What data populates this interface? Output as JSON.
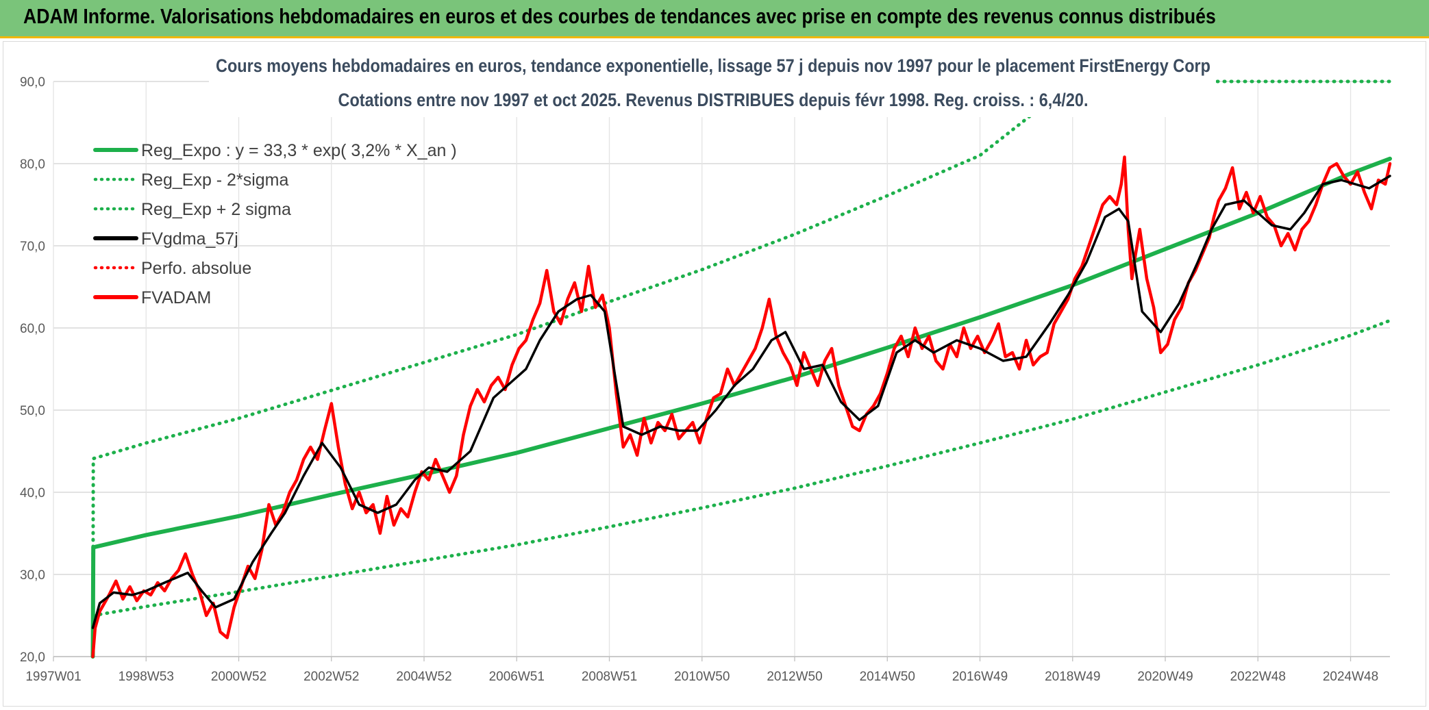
{
  "header": {
    "title": "ADAM Informe. Valorisations hebdomadaires en euros et des courbes de tendances avec prise en compte des revenus connus distribués"
  },
  "colors": {
    "header_bg": "#7ac47a",
    "header_border": "#f2b705",
    "regression": "#1db04b",
    "smoothed": "#000000",
    "price": "#ff0000",
    "grid": "#d9d9d9",
    "title_text": "#3b4b5e"
  },
  "chart_data": {
    "type": "line",
    "title_line1": "Cours moyens hebdomadaires en euros, tendance exponentielle, lissage 57 j depuis nov 1997 pour le placement FirstEnergy Corp",
    "title_line2": "Cotations entre nov 1997 et oct 2025. Revenus DISTRIBUES depuis févr 1998. Reg. croiss. : 6,4/20.",
    "xlabel": "",
    "ylabel": "",
    "xlim": [
      1997.0,
      2025.85
    ],
    "ylim": [
      20,
      90
    ],
    "y_ticks": [
      20,
      30,
      40,
      50,
      60,
      70,
      80,
      90
    ],
    "y_tick_labels": [
      "20,0",
      "30,0",
      "40,0",
      "50,0",
      "60,0",
      "70,0",
      "80,0",
      "90,0"
    ],
    "x_ticks": [
      {
        "label": "1997W01",
        "x": 1997.0
      },
      {
        "label": "1998W53",
        "x": 1999.0
      },
      {
        "label": "2000W52",
        "x": 2001.0
      },
      {
        "label": "2002W52",
        "x": 2003.0
      },
      {
        "label": "2004W52",
        "x": 2005.0
      },
      {
        "label": "2006W51",
        "x": 2007.0
      },
      {
        "label": "2008W51",
        "x": 2009.0
      },
      {
        "label": "2010W50",
        "x": 2011.0
      },
      {
        "label": "2012W50",
        "x": 2013.0
      },
      {
        "label": "2014W50",
        "x": 2015.0
      },
      {
        "label": "2016W49",
        "x": 2017.0
      },
      {
        "label": "2018W49",
        "x": 2019.0
      },
      {
        "label": "2020W49",
        "x": 2021.0
      },
      {
        "label": "2022W48",
        "x": 2023.0
      },
      {
        "label": "2024W48",
        "x": 2025.0
      }
    ],
    "grid": true,
    "legend_position": "top-left",
    "series": [
      {
        "name": "Reg_Expo : y = 33,3 * exp( 3,2% *  X_an )",
        "style": "solid-thick",
        "color": "#1db04b",
        "x": [
          1997.85,
          1997.86,
          1999,
          2001,
          2003,
          2005,
          2007,
          2009,
          2011,
          2013,
          2015,
          2017,
          2019,
          2021,
          2023,
          2025,
          2025.85
        ],
        "y": [
          20.0,
          33.3,
          34.8,
          37.1,
          39.7,
          42.2,
          44.8,
          47.8,
          50.8,
          54.0,
          57.6,
          61.3,
          65.2,
          69.6,
          74.0,
          78.8,
          80.6
        ]
      },
      {
        "name": "Reg_Exp - 2*sigma",
        "style": "dotted",
        "color": "#1db04b",
        "x": [
          1997.85,
          1997.86,
          1999,
          2001,
          2003,
          2005,
          2007,
          2009,
          2011,
          2013,
          2015,
          2017,
          2019,
          2021,
          2023,
          2025,
          2025.85
        ],
        "y": [
          20.0,
          25.0,
          26.1,
          27.9,
          29.8,
          31.7,
          33.6,
          35.8,
          38.1,
          40.5,
          43.2,
          46.0,
          48.9,
          52.2,
          55.5,
          59.1,
          60.9
        ]
      },
      {
        "name": "Reg_Exp + 2 sigma",
        "style": "dotted",
        "color": "#1db04b",
        "x": [
          1997.85,
          1997.86,
          1999,
          2001,
          2003,
          2005,
          2007,
          2009,
          2011,
          2013,
          2015,
          2017,
          2018.15,
          2018.2,
          2025.85
        ],
        "y": [
          20.0,
          44.1,
          46.0,
          49.0,
          52.4,
          55.8,
          59.2,
          63.2,
          67.1,
          71.4,
          76.1,
          81.0,
          86.1,
          90.0,
          90.0
        ]
      },
      {
        "name": "FVgdma_57j",
        "style": "solid",
        "color": "#000000",
        "x": [
          1997.85,
          1998.0,
          1998.3,
          1998.7,
          1999.0,
          1999.4,
          1999.9,
          2000.2,
          2000.5,
          2000.9,
          2001.3,
          2001.7,
          2002.0,
          2002.4,
          2002.8,
          2003.2,
          2003.6,
          2004.0,
          2004.4,
          2004.8,
          2005.1,
          2005.5,
          2006.0,
          2006.5,
          2006.9,
          2007.2,
          2007.5,
          2007.9,
          2008.3,
          2008.6,
          2008.9,
          2009.3,
          2009.7,
          2010.1,
          2010.5,
          2010.9,
          2011.3,
          2011.7,
          2012.1,
          2012.5,
          2012.8,
          2013.2,
          2013.6,
          2014.0,
          2014.4,
          2014.8,
          2015.2,
          2015.6,
          2016.0,
          2016.5,
          2017.0,
          2017.5,
          2018.0,
          2018.5,
          2018.9,
          2019.3,
          2019.7,
          2020.0,
          2020.2,
          2020.5,
          2020.9,
          2021.3,
          2021.7,
          2022.0,
          2022.3,
          2022.7,
          2023.0,
          2023.3,
          2023.7,
          2024.0,
          2024.4,
          2024.8,
          2025.1,
          2025.4,
          2025.85
        ],
        "y": [
          23.5,
          26.5,
          27.8,
          27.5,
          28.0,
          29.0,
          30.2,
          28.0,
          26.0,
          27.0,
          31.5,
          35.0,
          37.5,
          42.0,
          46.0,
          43.0,
          38.5,
          37.5,
          38.5,
          41.5,
          43.0,
          42.5,
          45.0,
          51.5,
          53.5,
          55.0,
          58.5,
          62.0,
          63.5,
          64.0,
          62.0,
          48.0,
          47.0,
          48.0,
          47.5,
          47.5,
          50.0,
          53.0,
          55.0,
          58.5,
          59.5,
          55.0,
          55.5,
          51.0,
          48.8,
          50.5,
          57.0,
          58.5,
          57.0,
          58.5,
          57.5,
          56.0,
          56.5,
          60.5,
          64.0,
          68.0,
          73.5,
          74.5,
          73.0,
          62.0,
          59.5,
          63.0,
          68.0,
          72.0,
          75.0,
          75.5,
          74.0,
          72.5,
          72.0,
          74.0,
          77.5,
          78.0,
          77.5,
          77.0,
          78.5
        ]
      },
      {
        "name": "Perfo. absolue",
        "style": "dotted",
        "color": "#ff0000",
        "x": [],
        "y": []
      },
      {
        "name": "FVADAM",
        "style": "solid-thick",
        "color": "#ff0000",
        "x": [
          1997.85,
          1997.9,
          1998.0,
          1998.2,
          1998.35,
          1998.5,
          1998.65,
          1998.8,
          1998.95,
          1999.1,
          1999.25,
          1999.4,
          1999.55,
          1999.7,
          1999.85,
          2000.0,
          2000.15,
          2000.3,
          2000.45,
          2000.6,
          2000.75,
          2000.9,
          2001.05,
          2001.2,
          2001.35,
          2001.5,
          2001.65,
          2001.8,
          2001.95,
          2002.1,
          2002.25,
          2002.4,
          2002.55,
          2002.7,
          2002.85,
          2003.0,
          2003.15,
          2003.3,
          2003.45,
          2003.6,
          2003.75,
          2003.9,
          2004.05,
          2004.2,
          2004.35,
          2004.5,
          2004.65,
          2004.8,
          2004.95,
          2005.1,
          2005.25,
          2005.4,
          2005.55,
          2005.7,
          2005.85,
          2006.0,
          2006.15,
          2006.3,
          2006.45,
          2006.6,
          2006.75,
          2006.9,
          2007.05,
          2007.2,
          2007.35,
          2007.5,
          2007.65,
          2007.8,
          2007.95,
          2008.1,
          2008.25,
          2008.4,
          2008.55,
          2008.7,
          2008.85,
          2009.0,
          2009.15,
          2009.3,
          2009.45,
          2009.6,
          2009.75,
          2009.9,
          2010.05,
          2010.2,
          2010.35,
          2010.5,
          2010.65,
          2010.8,
          2010.95,
          2011.1,
          2011.25,
          2011.4,
          2011.55,
          2011.7,
          2011.85,
          2012.0,
          2012.15,
          2012.3,
          2012.45,
          2012.6,
          2012.75,
          2012.9,
          2013.05,
          2013.2,
          2013.35,
          2013.5,
          2013.65,
          2013.8,
          2013.95,
          2014.1,
          2014.25,
          2014.4,
          2014.55,
          2014.7,
          2014.85,
          2015.0,
          2015.15,
          2015.3,
          2015.45,
          2015.6,
          2015.75,
          2015.9,
          2016.05,
          2016.2,
          2016.35,
          2016.5,
          2016.65,
          2016.8,
          2016.95,
          2017.1,
          2017.25,
          2017.4,
          2017.55,
          2017.7,
          2017.85,
          2018.0,
          2018.15,
          2018.3,
          2018.45,
          2018.6,
          2018.75,
          2018.9,
          2019.05,
          2019.2,
          2019.35,
          2019.5,
          2019.65,
          2019.8,
          2019.95,
          2020.05,
          2020.12,
          2020.2,
          2020.28,
          2020.36,
          2020.45,
          2020.6,
          2020.75,
          2020.9,
          2021.05,
          2021.2,
          2021.35,
          2021.5,
          2021.65,
          2021.8,
          2021.95,
          2022.05,
          2022.15,
          2022.3,
          2022.45,
          2022.6,
          2022.75,
          2022.9,
          2023.05,
          2023.2,
          2023.35,
          2023.5,
          2023.65,
          2023.8,
          2023.95,
          2024.1,
          2024.25,
          2024.4,
          2024.55,
          2024.7,
          2024.85,
          2025.0,
          2025.15,
          2025.3,
          2025.45,
          2025.6,
          2025.75,
          2025.85
        ],
        "y": [
          20.0,
          23.5,
          25.5,
          27.5,
          29.2,
          27.0,
          28.5,
          26.8,
          28.0,
          27.5,
          29.0,
          28.0,
          29.5,
          30.5,
          32.5,
          30.0,
          28.0,
          25.0,
          26.5,
          23.0,
          22.3,
          26.0,
          28.5,
          31.0,
          29.5,
          33.0,
          38.5,
          36.0,
          37.5,
          40.0,
          41.5,
          44.0,
          45.5,
          44.0,
          47.5,
          50.8,
          45.5,
          41.0,
          38.0,
          40.0,
          37.5,
          38.5,
          35.0,
          39.5,
          36.0,
          38.0,
          37.0,
          40.0,
          42.5,
          41.5,
          44.0,
          42.0,
          40.0,
          42.0,
          47.0,
          50.5,
          52.5,
          51.0,
          53.0,
          54.0,
          52.5,
          55.5,
          57.5,
          58.5,
          61.0,
          63.0,
          67.0,
          62.0,
          60.5,
          63.5,
          65.5,
          62.0,
          67.5,
          62.5,
          64.0,
          60.0,
          52.0,
          45.5,
          47.0,
          44.5,
          49.0,
          46.0,
          48.5,
          47.5,
          49.5,
          46.5,
          47.5,
          48.5,
          46.0,
          49.0,
          51.5,
          52.0,
          55.0,
          53.0,
          54.5,
          56.0,
          57.5,
          60.0,
          63.5,
          59.0,
          57.0,
          55.5,
          53.0,
          57.0,
          55.0,
          53.0,
          56.0,
          57.5,
          53.0,
          50.5,
          48.0,
          47.5,
          49.5,
          50.5,
          52.0,
          54.5,
          57.5,
          59.0,
          56.5,
          60.0,
          57.5,
          59.0,
          56.0,
          55.0,
          58.0,
          56.5,
          60.0,
          57.5,
          59.0,
          57.0,
          58.5,
          60.5,
          56.5,
          57.0,
          55.0,
          58.5,
          55.5,
          56.5,
          57.0,
          60.5,
          62.0,
          63.5,
          66.0,
          67.5,
          70.0,
          72.5,
          75.0,
          76.0,
          75.0,
          77.5,
          80.8,
          72.0,
          66.0,
          69.0,
          72.0,
          66.0,
          62.5,
          57.0,
          58.0,
          61.0,
          62.5,
          65.5,
          67.0,
          69.0,
          71.0,
          73.5,
          75.5,
          77.0,
          79.5,
          74.5,
          76.5,
          74.0,
          76.0,
          73.5,
          72.5,
          70.0,
          71.5,
          69.5,
          72.0,
          73.0,
          75.0,
          77.5,
          79.5,
          80.0,
          78.5,
          77.5,
          79.0,
          76.5,
          74.5,
          78.0,
          77.5,
          80.0
        ]
      }
    ]
  }
}
